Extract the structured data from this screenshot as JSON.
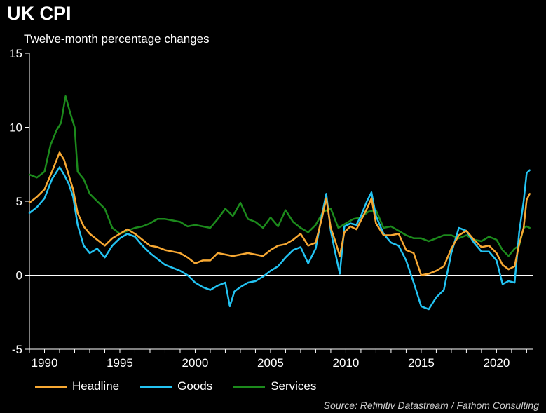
{
  "title": "UK CPI",
  "subtitle": "Twelve-month percentage changes",
  "source": "Source: Refinitiv Datastream / Fathom Consulting",
  "colors": {
    "background": "#000000",
    "headline": "#f7a833",
    "goods": "#23c3f2",
    "services": "#1c8a1c",
    "zero_line": "#ffffff",
    "axis": "#ffffff"
  },
  "chart_data": {
    "type": "line",
    "title": "UK CPI",
    "subtitle": "Twelve-month percentage changes",
    "xlabel": "",
    "ylabel": "",
    "xlim": [
      1989.0,
      2022.4
    ],
    "ylim": [
      -5,
      15
    ],
    "x_ticks": [
      1990,
      1995,
      2000,
      2005,
      2010,
      2015,
      2020
    ],
    "y_ticks": [
      -5,
      0,
      5,
      10,
      15
    ],
    "grid": false,
    "legend_position": "bottom-left",
    "series": [
      {
        "name": "Headline",
        "color": "#f7a833",
        "x": [
          1989.0,
          1989.5,
          1990.0,
          1990.5,
          1991.0,
          1991.3,
          1991.6,
          1991.9,
          1992.2,
          1992.6,
          1993.0,
          1993.5,
          1994.0,
          1994.5,
          1995.0,
          1995.5,
          1996.0,
          1996.5,
          1997.0,
          1997.5,
          1998.0,
          1998.5,
          1999.0,
          1999.5,
          2000.0,
          2000.5,
          2001.0,
          2001.5,
          2002.0,
          2002.5,
          2003.0,
          2003.5,
          2004.0,
          2004.5,
          2005.0,
          2005.5,
          2006.0,
          2006.5,
          2007.0,
          2007.5,
          2008.0,
          2008.4,
          2008.7,
          2009.0,
          2009.3,
          2009.6,
          2009.9,
          2010.3,
          2010.7,
          2011.0,
          2011.4,
          2011.7,
          2012.0,
          2012.5,
          2013.0,
          2013.5,
          2014.0,
          2014.5,
          2015.0,
          2015.5,
          2016.0,
          2016.5,
          2017.0,
          2017.5,
          2018.0,
          2018.5,
          2019.0,
          2019.5,
          2020.0,
          2020.4,
          2020.8,
          2021.2,
          2021.5,
          2021.8,
          2022.0,
          2022.2
        ],
        "values": [
          4.9,
          5.3,
          5.8,
          7.0,
          8.3,
          7.8,
          6.8,
          5.8,
          4.2,
          3.3,
          2.8,
          2.4,
          2.0,
          2.5,
          2.8,
          3.1,
          2.8,
          2.4,
          2.0,
          1.9,
          1.7,
          1.6,
          1.5,
          1.2,
          0.8,
          1.0,
          1.0,
          1.5,
          1.4,
          1.3,
          1.4,
          1.5,
          1.4,
          1.3,
          1.7,
          2.0,
          2.1,
          2.4,
          2.8,
          2.0,
          2.2,
          3.8,
          5.2,
          3.2,
          2.3,
          1.3,
          2.9,
          3.3,
          3.1,
          3.7,
          4.5,
          5.2,
          3.5,
          2.7,
          2.7,
          2.8,
          1.7,
          1.5,
          0.0,
          0.1,
          0.3,
          0.6,
          1.8,
          2.7,
          3.0,
          2.4,
          1.9,
          2.0,
          1.5,
          0.7,
          0.4,
          0.6,
          2.1,
          3.2,
          5.1,
          5.5
        ]
      },
      {
        "name": "Goods",
        "color": "#23c3f2",
        "x": [
          1989.0,
          1989.5,
          1990.0,
          1990.5,
          1991.0,
          1991.3,
          1991.6,
          1991.9,
          1992.2,
          1992.6,
          1993.0,
          1993.5,
          1994.0,
          1994.5,
          1995.0,
          1995.5,
          1996.0,
          1996.5,
          1997.0,
          1997.5,
          1998.0,
          1998.5,
          1999.0,
          1999.5,
          2000.0,
          2000.5,
          2001.0,
          2001.5,
          2002.0,
          2002.3,
          2002.6,
          2003.0,
          2003.5,
          2004.0,
          2004.5,
          2005.0,
          2005.5,
          2006.0,
          2006.5,
          2007.0,
          2007.5,
          2008.0,
          2008.4,
          2008.7,
          2009.0,
          2009.3,
          2009.6,
          2009.9,
          2010.3,
          2010.7,
          2011.0,
          2011.4,
          2011.7,
          2012.0,
          2012.5,
          2013.0,
          2013.5,
          2014.0,
          2014.5,
          2015.0,
          2015.5,
          2016.0,
          2016.5,
          2017.0,
          2017.5,
          2018.0,
          2018.5,
          2019.0,
          2019.5,
          2020.0,
          2020.4,
          2020.8,
          2021.2,
          2021.5,
          2021.8,
          2022.0,
          2022.2
        ],
        "values": [
          4.2,
          4.6,
          5.2,
          6.5,
          7.3,
          6.8,
          6.2,
          5.3,
          3.4,
          2.0,
          1.5,
          1.8,
          1.2,
          2.0,
          2.5,
          2.8,
          2.6,
          2.0,
          1.5,
          1.1,
          0.7,
          0.5,
          0.3,
          0.0,
          -0.5,
          -0.8,
          -1.0,
          -0.7,
          -0.5,
          -2.1,
          -1.1,
          -0.8,
          -0.5,
          -0.4,
          -0.1,
          0.3,
          0.6,
          1.2,
          1.7,
          1.9,
          0.8,
          1.8,
          4.0,
          5.5,
          3.0,
          1.5,
          0.1,
          3.3,
          3.5,
          3.4,
          4.0,
          5.0,
          5.6,
          4.0,
          2.8,
          2.2,
          2.0,
          1.0,
          -0.5,
          -2.1,
          -2.3,
          -1.5,
          -1.0,
          1.5,
          3.2,
          3.0,
          2.2,
          1.6,
          1.6,
          1.0,
          -0.6,
          -0.4,
          -0.5,
          2.9,
          5.0,
          6.9,
          7.1
        ]
      },
      {
        "name": "Services",
        "color": "#1c8a1c",
        "x": [
          1989.0,
          1989.5,
          1990.0,
          1990.4,
          1990.8,
          1991.1,
          1991.4,
          1991.7,
          1992.0,
          1992.2,
          1992.6,
          1993.0,
          1993.5,
          1994.0,
          1994.5,
          1995.0,
          1995.5,
          1996.0,
          1996.5,
          1997.0,
          1997.5,
          1998.0,
          1998.5,
          1999.0,
          1999.5,
          2000.0,
          2000.5,
          2001.0,
          2001.5,
          2002.0,
          2002.5,
          2003.0,
          2003.5,
          2004.0,
          2004.5,
          2005.0,
          2005.5,
          2006.0,
          2006.5,
          2007.0,
          2007.5,
          2008.0,
          2008.5,
          2009.0,
          2009.5,
          2010.0,
          2010.5,
          2011.0,
          2011.5,
          2012.0,
          2012.5,
          2013.0,
          2013.5,
          2014.0,
          2014.5,
          2015.0,
          2015.5,
          2016.0,
          2016.5,
          2017.0,
          2017.5,
          2018.0,
          2018.5,
          2019.0,
          2019.5,
          2020.0,
          2020.4,
          2020.8,
          2021.2,
          2021.5,
          2021.8,
          2022.0,
          2022.2
        ],
        "values": [
          6.8,
          6.6,
          7.0,
          8.8,
          9.8,
          10.3,
          12.1,
          11.0,
          10.0,
          7.0,
          6.5,
          5.5,
          5.0,
          4.5,
          3.2,
          2.8,
          3.0,
          3.2,
          3.3,
          3.5,
          3.8,
          3.8,
          3.7,
          3.6,
          3.3,
          3.4,
          3.3,
          3.2,
          3.8,
          4.5,
          4.0,
          4.9,
          3.8,
          3.6,
          3.2,
          3.9,
          3.3,
          4.4,
          3.6,
          3.2,
          2.9,
          3.4,
          4.3,
          4.5,
          3.2,
          3.5,
          3.8,
          3.9,
          4.3,
          4.4,
          3.2,
          3.3,
          3.0,
          2.7,
          2.5,
          2.5,
          2.3,
          2.5,
          2.7,
          2.7,
          2.5,
          2.7,
          2.4,
          2.3,
          2.6,
          2.4,
          1.7,
          1.3,
          1.8,
          2.0,
          3.2,
          3.3,
          3.2
        ]
      }
    ]
  }
}
